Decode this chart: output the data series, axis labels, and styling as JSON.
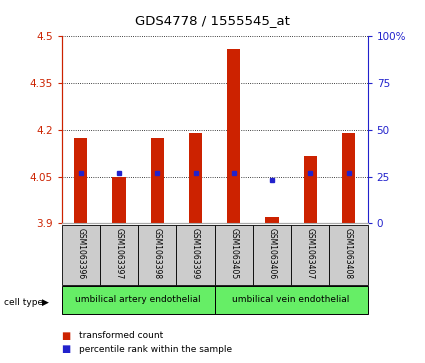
{
  "title": "GDS4778 / 1555545_at",
  "samples": [
    "GSM1063396",
    "GSM1063397",
    "GSM1063398",
    "GSM1063399",
    "GSM1063405",
    "GSM1063406",
    "GSM1063407",
    "GSM1063408"
  ],
  "red_values": [
    4.175,
    4.05,
    4.175,
    4.19,
    4.46,
    3.92,
    4.115,
    4.19
  ],
  "blue_values": [
    27,
    27,
    27,
    27,
    27,
    23,
    27,
    27
  ],
  "ymin": 3.9,
  "ymax": 4.5,
  "yticks": [
    3.9,
    4.05,
    4.2,
    4.35,
    4.5
  ],
  "ytick_labels": [
    "3.9",
    "4.05",
    "4.2",
    "4.35",
    "4.5"
  ],
  "right_yticks": [
    0,
    25,
    50,
    75,
    100
  ],
  "right_ytick_labels": [
    "0",
    "25",
    "50",
    "75",
    "100%"
  ],
  "cell_type_groups": [
    {
      "label": "umbilical artery endothelial",
      "start": 0,
      "end": 3
    },
    {
      "label": "umbilical vein endothelial",
      "start": 4,
      "end": 7
    }
  ],
  "bar_bottom": 3.9,
  "bar_color": "#cc2200",
  "dot_color": "#2222cc",
  "legend_red_label": "transformed count",
  "legend_blue_label": "percentile rank within the sample",
  "left_axis_color": "#cc2200",
  "right_axis_color": "#2222cc",
  "cell_type_bg_color": "#66ee66",
  "sample_bg_color": "#cccccc",
  "bar_width": 0.35
}
